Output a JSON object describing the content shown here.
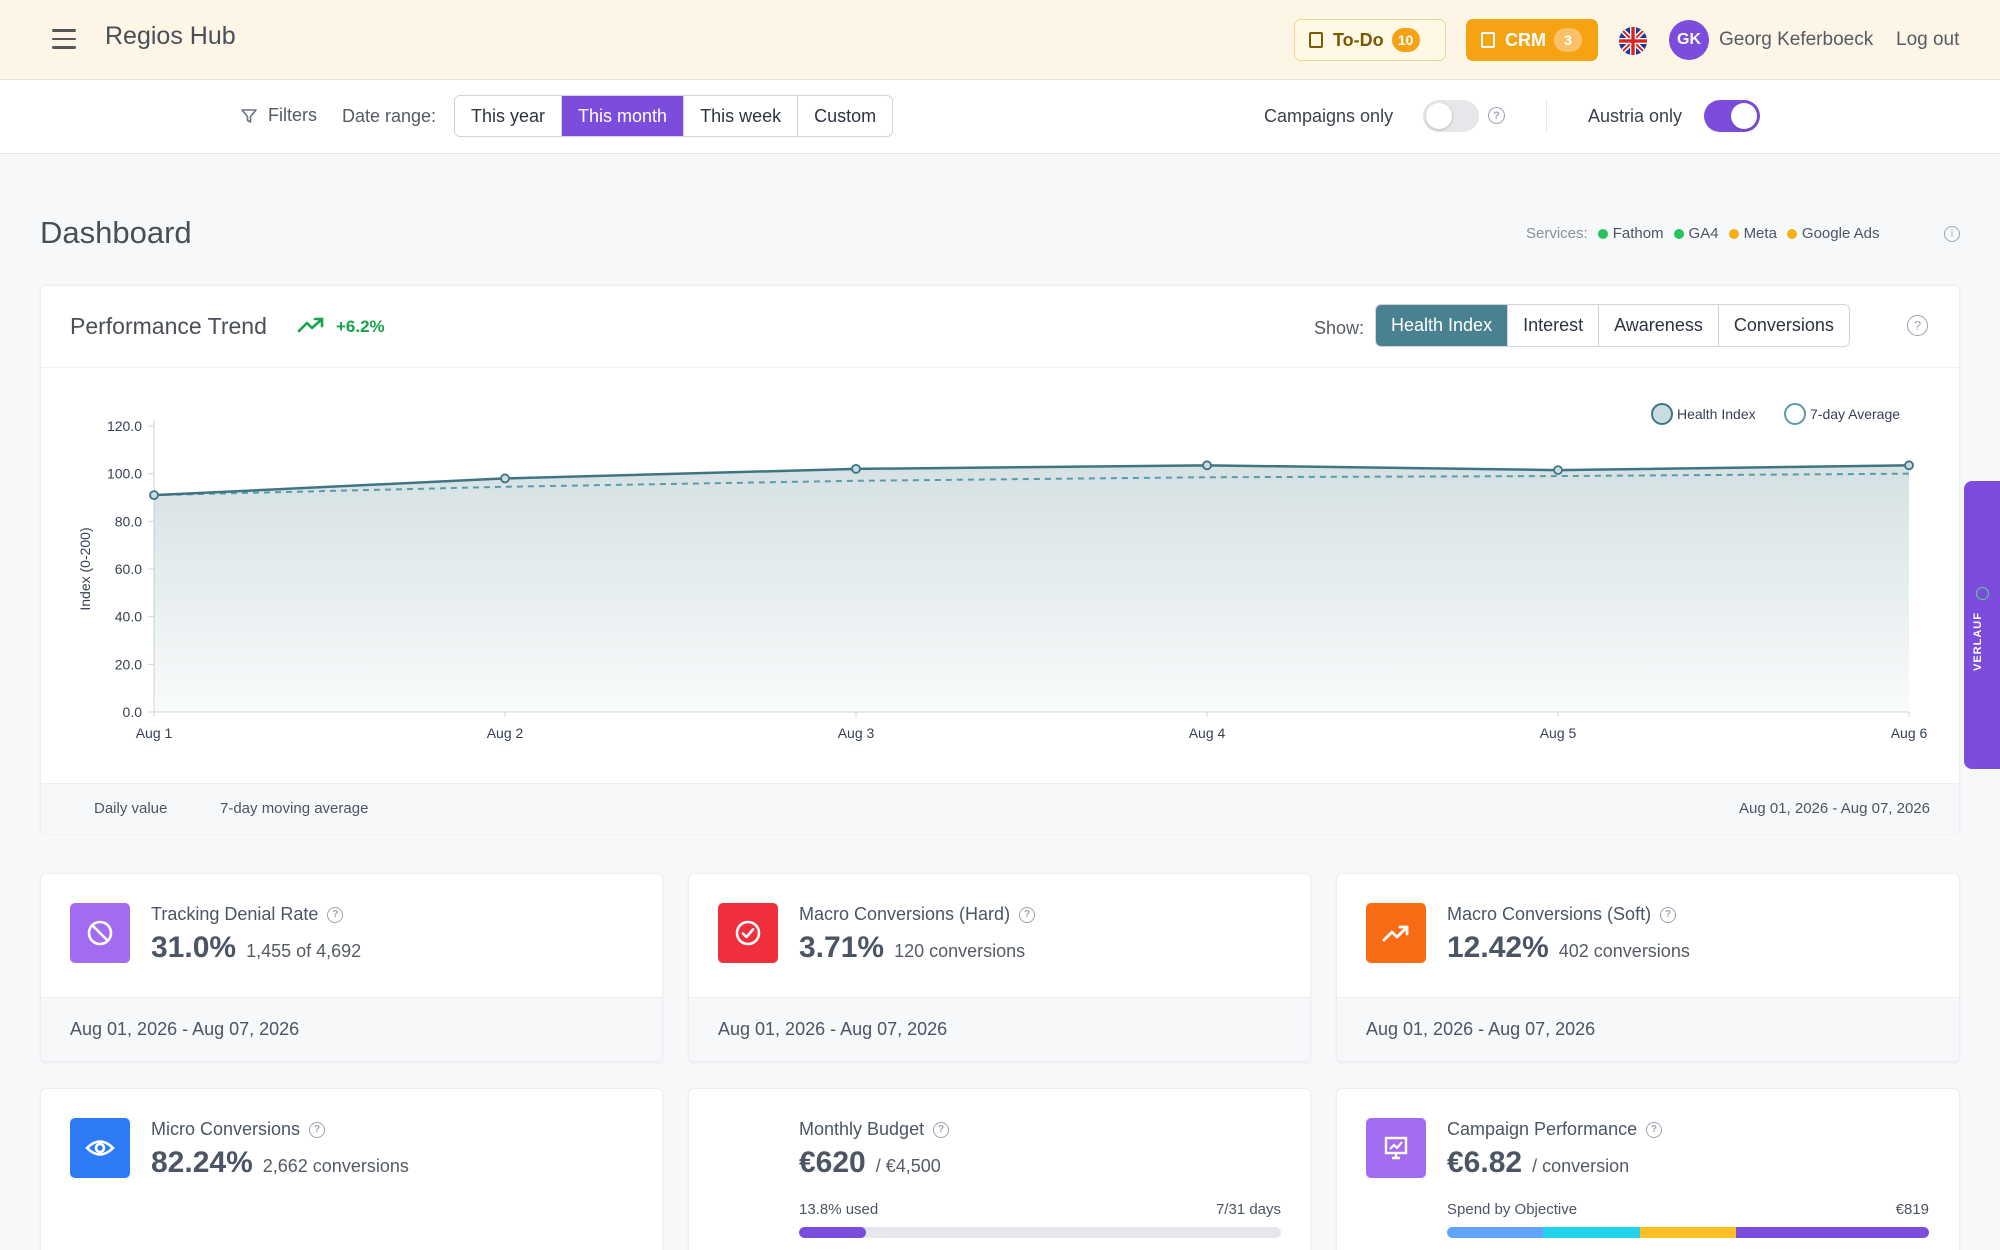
{
  "header": {
    "brand": "Regios Hub",
    "todo_label": "To-Do",
    "todo_count": "10",
    "crm_label": "CRM",
    "crm_count": "3",
    "avatar_initials": "GK",
    "user_name": "Georg Keferboeck",
    "logout_label": "Log out"
  },
  "filters": {
    "filters_label": "Filters",
    "date_range_label": "Date range:",
    "ranges": [
      "This year",
      "This month",
      "This week",
      "Custom"
    ],
    "active_range": "This month",
    "campaigns_only_label": "Campaigns only",
    "campaigns_only": false,
    "austria_only_label": "Austria only",
    "austria_only": true
  },
  "dashboard": {
    "title": "Dashboard",
    "services_label": "Services:",
    "services": [
      {
        "name": "Fathom",
        "color": "#22c55e"
      },
      {
        "name": "GA4",
        "color": "#22c55e"
      },
      {
        "name": "Meta",
        "color": "#f5b014"
      },
      {
        "name": "Google Ads",
        "color": "#f5b014"
      }
    ]
  },
  "performance": {
    "title": "Performance Trend",
    "trend_value": "+6.2%",
    "show_label": "Show:",
    "tabs": [
      "Health Index",
      "Interest",
      "Awareness",
      "Conversions"
    ],
    "active_tab": "Health Index",
    "footer_daily": "Daily value",
    "footer_avg": "7-day moving average",
    "footer_range": "Aug 01, 2026 - Aug 07, 2026"
  },
  "chart_data": {
    "type": "line",
    "ylabel": "Index (0-200)",
    "xlabel": "",
    "categories": [
      "Aug 1",
      "Aug 2",
      "Aug 3",
      "Aug 4",
      "Aug 5",
      "Aug 6"
    ],
    "ylim": [
      0,
      120
    ],
    "yticks": [
      "0.0",
      "20.0",
      "40.0",
      "60.0",
      "80.0",
      "100.0",
      "120.0"
    ],
    "series": [
      {
        "name": "Health Index",
        "values": [
          91,
          98,
          102,
          103.5,
          101.5,
          103.5
        ],
        "color": "#3f7583"
      },
      {
        "name": "7-day Average",
        "values": [
          91,
          94.5,
          97,
          98.5,
          99,
          100
        ],
        "color": "#5a9bab"
      }
    ],
    "legend": "top-right",
    "grid": false
  },
  "metrics": [
    {
      "title": "Tracking Denial Rate",
      "value": "31.0%",
      "sub": "1,455 of 4,692",
      "footer": "Aug 01, 2026 - Aug 07, 2026",
      "icon": "block-icon",
      "color": "#a36cf0"
    },
    {
      "title": "Macro Conversions (Hard)",
      "value": "3.71%",
      "sub": "120 conversions",
      "footer": "Aug 01, 2026 - Aug 07, 2026",
      "icon": "check-circle-icon",
      "color": "#ef2f3c"
    },
    {
      "title": "Macro Conversions (Soft)",
      "value": "12.42%",
      "sub": "402 conversions",
      "footer": "Aug 01, 2026 - Aug 07, 2026",
      "icon": "trending-up-icon",
      "color": "#f76b15"
    },
    {
      "title": "Micro Conversions",
      "value": "82.24%",
      "sub": "2,662 conversions",
      "icon": "eye-icon",
      "color": "#2d7cf6"
    }
  ],
  "budget": {
    "title": "Monthly Budget",
    "value": "€620",
    "sub": "/ €4,500",
    "used_label": "13.8% used",
    "days_label": "7/31 days",
    "used_fraction": 0.138
  },
  "campaign": {
    "title": "Campaign Performance",
    "value": "€6.82",
    "sub": "/ conversion",
    "spend_label": "Spend by Objective",
    "spend_total": "€819",
    "segments": [
      {
        "fraction": 0.2,
        "color": "#60a5fa"
      },
      {
        "fraction": 0.2,
        "color": "#22d3ee"
      },
      {
        "fraction": 0.2,
        "color": "#fbbf24"
      },
      {
        "fraction": 0.4,
        "color": "#7c4ddc"
      }
    ],
    "icon_color": "#a36cf0"
  },
  "sidebar_tab": {
    "label": "VERLAUF"
  }
}
